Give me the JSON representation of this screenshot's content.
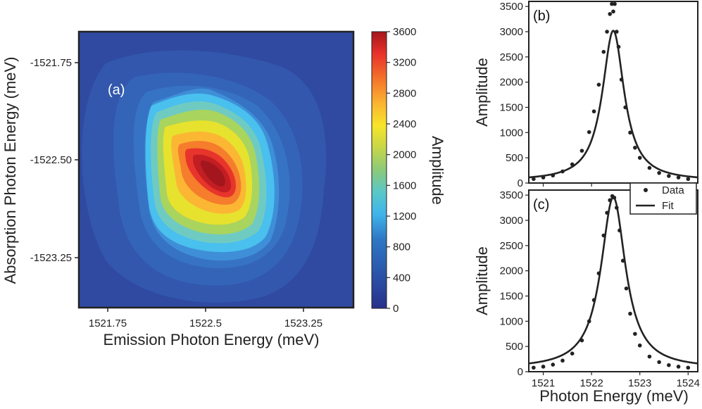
{
  "panels": {
    "a": {
      "label": "(a)",
      "xlabel": "Emission  Photon  Energy  (meV)",
      "ylabel": "Absorption  Photon  Energy  (meV)",
      "xticks": [
        "1521.75",
        "1522.5",
        "1523.25"
      ],
      "yticks": [
        "-1521.75",
        "-1522.50",
        "-1523.25"
      ],
      "colorbar_label": "Amplitude",
      "colorbar_ticks": [
        "3600",
        "3200",
        "2800",
        "2400",
        "2000",
        "1600",
        "1200",
        "800",
        "400",
        "0"
      ]
    },
    "b": {
      "label": "(b)",
      "ylabel": "Amplitude",
      "yticks": [
        "3500",
        "3000",
        "2500",
        "2000",
        "1500",
        "1000",
        "500",
        "0"
      ]
    },
    "c": {
      "label": "(c)",
      "ylabel": "Amplitude",
      "yticks": [
        "3500",
        "3000",
        "2500",
        "2000",
        "1500",
        "1000",
        "500",
        "0"
      ],
      "xticks": [
        "1521",
        "1522",
        "1523",
        "1524"
      ],
      "xlabel": "Photon  Energy  (meV)",
      "legend": {
        "data": "Data",
        "fit": "Fit"
      }
    }
  },
  "chart_data": [
    {
      "type": "heatmap",
      "title": "",
      "xlabel": "Emission Photon Energy (meV)",
      "ylabel": "Absorption Photon Energy (meV)",
      "colorbar": "Amplitude",
      "xlim": [
        1521.5,
        1523.6
      ],
      "ylim": [
        -1523.6,
        -1521.5
      ],
      "zlim": [
        0,
        3600
      ],
      "peak": {
        "x": 1522.52,
        "y": -1522.52,
        "z": 3600
      },
      "colormap": "jet"
    },
    {
      "type": "line",
      "panel": "b",
      "xlim": [
        1520.7,
        1524.2
      ],
      "ylim": [
        0,
        3600
      ],
      "series": [
        {
          "name": "Data",
          "kind": "scatter",
          "x": [
            1520.8,
            1521.0,
            1521.2,
            1521.4,
            1521.6,
            1521.8,
            1521.95,
            1522.05,
            1522.15,
            1522.25,
            1522.32,
            1522.38,
            1522.42,
            1522.45,
            1522.48,
            1522.52,
            1522.56,
            1522.62,
            1522.7,
            1522.8,
            1522.9,
            1523.0,
            1523.2,
            1523.4,
            1523.6,
            1523.8,
            1524.0
          ],
          "y": [
            80,
            110,
            150,
            230,
            370,
            640,
            1010,
            1420,
            1950,
            2600,
            3000,
            3350,
            3550,
            3400,
            3550,
            3000,
            2700,
            2050,
            1500,
            1000,
            700,
            500,
            300,
            200,
            140,
            110,
            80
          ]
        },
        {
          "name": "Fit",
          "kind": "line",
          "center": 1522.45,
          "amplitude": 2980,
          "fwhm": 0.55,
          "offset": 40
        }
      ]
    },
    {
      "type": "line",
      "panel": "c",
      "xlim": [
        1520.7,
        1524.2
      ],
      "ylim": [
        0,
        3600
      ],
      "series": [
        {
          "name": "Data",
          "kind": "scatter",
          "x": [
            1520.8,
            1521.0,
            1521.2,
            1521.4,
            1521.6,
            1521.8,
            1521.95,
            1522.05,
            1522.15,
            1522.25,
            1522.32,
            1522.38,
            1522.43,
            1522.47,
            1522.52,
            1522.58,
            1522.65,
            1522.72,
            1522.8,
            1522.9,
            1523.0,
            1523.2,
            1523.4,
            1523.6,
            1523.8,
            1524.0
          ],
          "y": [
            80,
            100,
            140,
            220,
            360,
            620,
            1000,
            1420,
            1950,
            2700,
            3150,
            3400,
            3480,
            3450,
            3250,
            2800,
            2200,
            1650,
            1150,
            750,
            520,
            300,
            190,
            130,
            100,
            80
          ]
        },
        {
          "name": "Fit",
          "kind": "line",
          "center": 1522.45,
          "amplitude": 3400,
          "fwhm": 0.62,
          "offset": 60
        }
      ]
    }
  ]
}
